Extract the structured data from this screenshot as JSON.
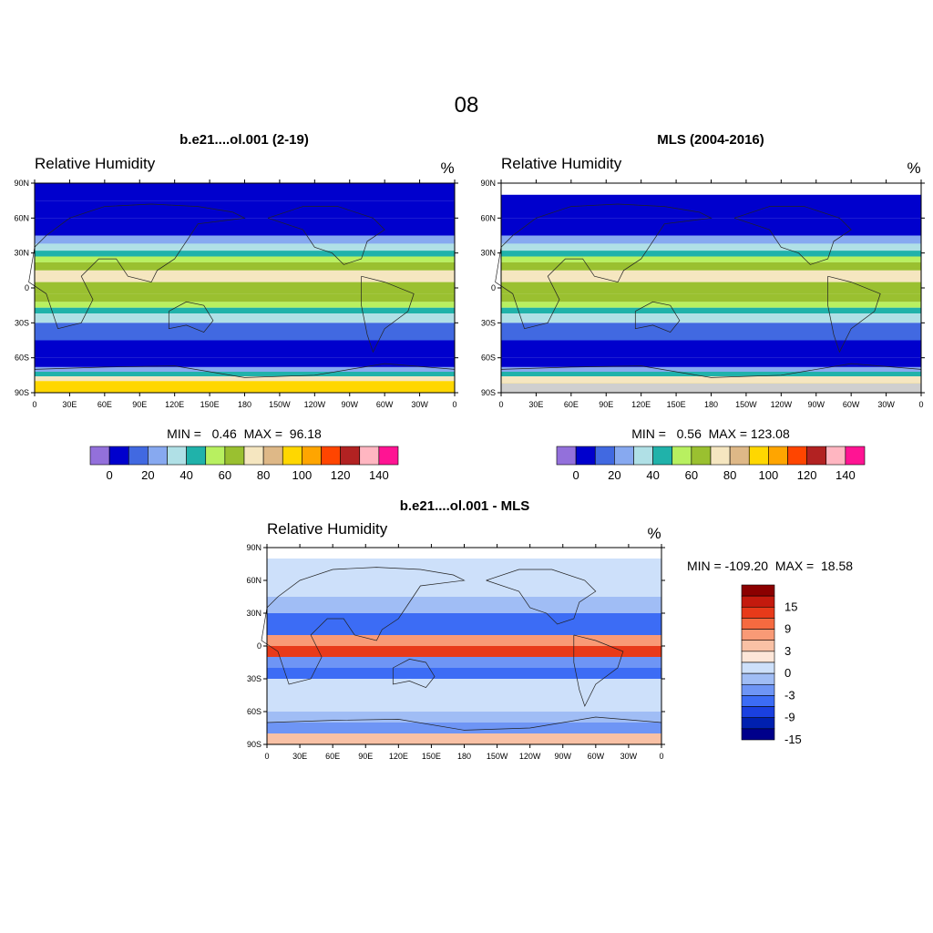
{
  "figure": {
    "title": "08"
  },
  "panels": [
    {
      "title": "b.e21....ol.001 (2-19)",
      "variable": "Relative Humidity",
      "units": "%",
      "stats": "MIN =   0.46  MAX =  96.18"
    },
    {
      "title": "MLS (2004-2016)",
      "variable": "Relative Humidity",
      "units": "%",
      "stats": "MIN =   0.56  MAX = 123.08"
    },
    {
      "title": "b.e21....ol.001 - MLS",
      "variable": "Relative Humidity",
      "units": "%",
      "stats": "MIN = -109.20  MAX =  18.58"
    }
  ],
  "axes": {
    "lat_labels": [
      "90N",
      "60N",
      "30N",
      "0",
      "30S",
      "60S",
      "90S"
    ],
    "lat_values": [
      90,
      60,
      30,
      0,
      -30,
      -60,
      -90
    ],
    "lon_labels": [
      "0",
      "30E",
      "60E",
      "90E",
      "120E",
      "150E",
      "180",
      "150W",
      "120W",
      "90W",
      "60W",
      "30W",
      "0"
    ],
    "lon_values": [
      0,
      30,
      60,
      90,
      120,
      150,
      180,
      210,
      240,
      270,
      300,
      330,
      360
    ]
  },
  "colorbars": {
    "absolute": {
      "colors": [
        "#9370db",
        "#0000cd",
        "#4169e1",
        "#87a9f0",
        "#b0e0e6",
        "#20b2aa",
        "#b8f060",
        "#9ac030",
        "#f5e6c0",
        "#deb887",
        "#ffd700",
        "#ffa500",
        "#ff4500",
        "#b22222",
        "#ffb6c1",
        "#ff1493"
      ],
      "levels": [
        0,
        10,
        20,
        30,
        40,
        50,
        60,
        70,
        80,
        90,
        100,
        110,
        120,
        130,
        140
      ],
      "tick_labels": [
        "0",
        "20",
        "40",
        "60",
        "80",
        "100",
        "120",
        "140"
      ]
    },
    "difference": {
      "colors": [
        "#00008b",
        "#0020b0",
        "#1a40e0",
        "#3c6cf5",
        "#6e95f5",
        "#a0bdf5",
        "#cde0fa",
        "#fde6d8",
        "#f9c1a5",
        "#f99a76",
        "#f56a40",
        "#e83a1a",
        "#c41a0e",
        "#8b0000"
      ],
      "tick_labels": [
        "-15",
        "-9",
        "-3",
        "0",
        "3",
        "9",
        "15"
      ]
    }
  },
  "chart_data": [
    {
      "type": "heatmap",
      "title": "b.e21....ol.001 (2-19)",
      "variable": "Relative Humidity",
      "units": "%",
      "min": 0.46,
      "max": 96.18,
      "xlim": [
        0,
        360
      ],
      "ylim": [
        -90,
        90
      ],
      "zonal_band_lat": [
        90,
        75,
        60,
        45,
        38,
        32,
        27,
        22,
        15,
        5,
        -5,
        -12,
        -17,
        -22,
        -30,
        -45,
        -60,
        -68,
        -72,
        -76,
        -80,
        -90
      ],
      "zonal_band_value": [
        5,
        5,
        5,
        20,
        35,
        45,
        55,
        65,
        70,
        65,
        60,
        55,
        45,
        35,
        15,
        5,
        5,
        25,
        45,
        75,
        95,
        100
      ]
    },
    {
      "type": "heatmap",
      "title": "MLS (2004-2016)",
      "variable": "Relative Humidity",
      "units": "%",
      "min": 0.56,
      "max": 123.08,
      "xlim": [
        0,
        360
      ],
      "ylim": [
        -90,
        90
      ],
      "zonal_band_lat": [
        90,
        80,
        60,
        45,
        38,
        32,
        27,
        22,
        15,
        5,
        -5,
        -12,
        -17,
        -22,
        -30,
        -45,
        -60,
        -68,
        -72,
        -76,
        -82,
        -90
      ],
      "zonal_band_value": [
        null,
        5,
        5,
        20,
        35,
        45,
        55,
        65,
        70,
        65,
        60,
        55,
        45,
        35,
        15,
        5,
        5,
        25,
        45,
        75,
        95,
        null
      ]
    },
    {
      "type": "heatmap",
      "title": "b.e21....ol.001 - MLS",
      "variable": "Relative Humidity",
      "units": "%",
      "min": -109.2,
      "max": 18.58,
      "xlim": [
        0,
        360
      ],
      "ylim": [
        -90,
        90
      ],
      "zonal_band_lat": [
        90,
        80,
        60,
        45,
        30,
        20,
        10,
        0,
        -10,
        -20,
        -30,
        -45,
        -60,
        -70,
        -80,
        -90
      ],
      "zonal_band_value": [
        null,
        -1,
        -2,
        -4,
        -10,
        -12,
        8,
        12,
        -8,
        -10,
        -3,
        -1,
        -6,
        -9,
        3,
        null
      ]
    }
  ]
}
